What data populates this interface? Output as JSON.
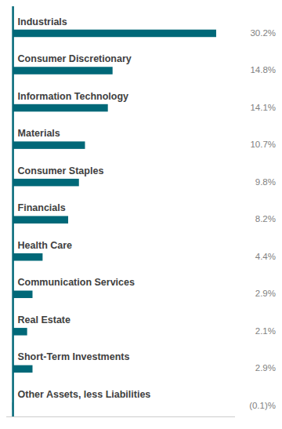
{
  "chart_data": {
    "type": "bar",
    "orientation": "horizontal",
    "categories": [
      "Industrials",
      "Consumer Discretionary",
      "Information Technology",
      "Materials",
      "Consumer Staples",
      "Financials",
      "Health Care",
      "Communication Services",
      "Real Estate",
      "Short-Term Investments",
      "Other Assets, less Liabilities"
    ],
    "values": [
      30.2,
      14.8,
      14.1,
      10.7,
      9.8,
      8.2,
      4.4,
      2.9,
      2.1,
      2.9,
      -0.1
    ],
    "value_labels": [
      "30.2%",
      "14.8%",
      "14.1%",
      "10.7%",
      "9.8%",
      "8.2%",
      "4.4%",
      "2.9%",
      "2.1%",
      "2.9%",
      "(0.1)%"
    ],
    "color": "#006878",
    "xlim": [
      -1,
      33
    ],
    "tick_labels": false,
    "grid": false,
    "data_labels": true
  }
}
